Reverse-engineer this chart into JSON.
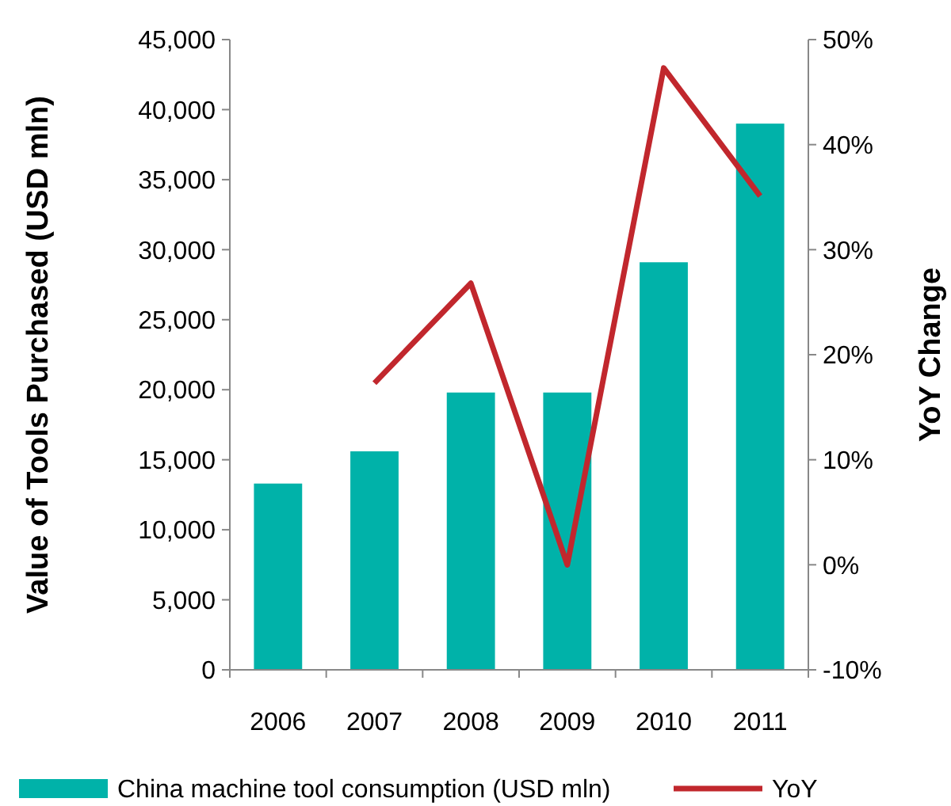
{
  "chart_data": {
    "type": "bar",
    "ylabel": "Value of Tools Purchased (USD mln)",
    "y2label": "YoY Change",
    "categories": [
      "2006",
      "2007",
      "2008",
      "2009",
      "2010",
      "2011"
    ],
    "series": [
      {
        "name": "China machine tool consumption (USD mln)",
        "color": "#00b2a9",
        "values": [
          13300,
          15600,
          19800,
          19800,
          29100,
          39000
        ]
      },
      {
        "name": "YoY",
        "type": "line",
        "axis": "y2",
        "color": "#c1272d",
        "values": [
          null,
          17.3,
          26.8,
          0,
          47.3,
          35.1
        ]
      }
    ],
    "ylim": [
      0,
      45000
    ],
    "yticks": [
      {
        "value": 0,
        "label": "0"
      },
      {
        "value": 5000,
        "label": "5,000"
      },
      {
        "value": 10000,
        "label": "10,000"
      },
      {
        "value": 15000,
        "label": "15,000"
      },
      {
        "value": 20000,
        "label": "20,000"
      },
      {
        "value": 25000,
        "label": "25,000"
      },
      {
        "value": 30000,
        "label": "30,000"
      },
      {
        "value": 35000,
        "label": "35,000"
      },
      {
        "value": 40000,
        "label": "40,000"
      },
      {
        "value": 45000,
        "label": "45,000"
      }
    ],
    "y2lim": [
      -10,
      50
    ],
    "y2ticks": [
      {
        "value": -10,
        "label": "-10%"
      },
      {
        "value": 0,
        "label": "0%"
      },
      {
        "value": 10,
        "label": "10%"
      },
      {
        "value": 20,
        "label": "20%"
      },
      {
        "value": 30,
        "label": "30%"
      },
      {
        "value": 40,
        "label": "40%"
      },
      {
        "value": 50,
        "label": "50%"
      }
    ],
    "legend": "bottom",
    "grid": false,
    "marker": "none",
    "line_style": "solid"
  }
}
